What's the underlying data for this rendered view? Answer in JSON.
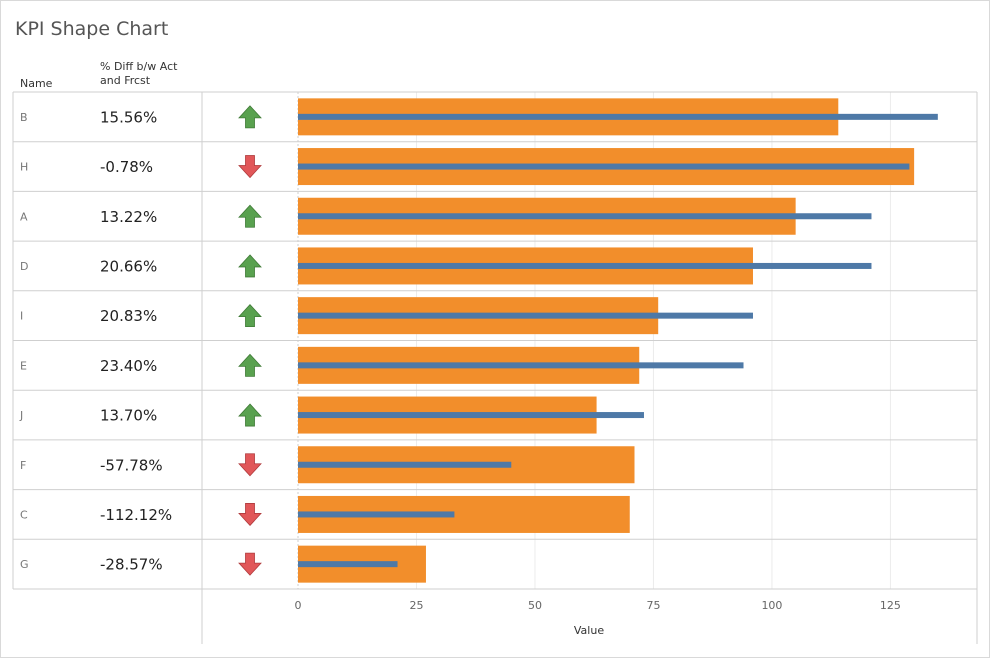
{
  "chart_data": {
    "type": "bar",
    "title": "KPI Shape Chart",
    "row_header": "Name",
    "diff_header": "% Diff b/w Act and Frcst",
    "xlabel": "Value",
    "xlim": [
      0,
      142
    ],
    "xticks": [
      0,
      25,
      50,
      75,
      100,
      125
    ],
    "categories": [
      "B",
      "H",
      "A",
      "D",
      "I",
      "E",
      "J",
      "F",
      "C",
      "G"
    ],
    "pct_diff": [
      "15.56%",
      "-0.78%",
      "13.22%",
      "20.66%",
      "20.83%",
      "23.40%",
      "13.70%",
      "-57.78%",
      "-112.12%",
      "-28.57%"
    ],
    "direction": [
      "up",
      "down",
      "up",
      "up",
      "up",
      "up",
      "up",
      "down",
      "down",
      "down"
    ],
    "series": [
      {
        "values": [
          114,
          130,
          105,
          96,
          76,
          72,
          63,
          71,
          70,
          27
        ],
        "color": "#f28e2b"
      },
      {
        "values": [
          135,
          129,
          121,
          121,
          96,
          94,
          73,
          45,
          33,
          21
        ],
        "color": "#4e79a7"
      }
    ],
    "arrow_colors": {
      "up": "#59a14f",
      "down": "#e15759"
    }
  }
}
